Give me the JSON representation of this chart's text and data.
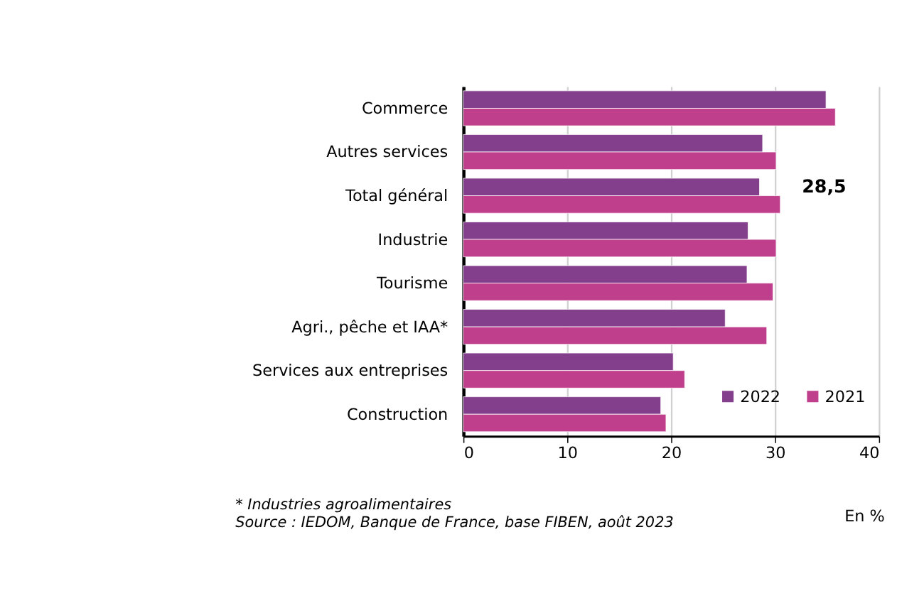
{
  "chart_data": {
    "type": "bar",
    "orientation": "horizontal",
    "categories": [
      "Commerce",
      "Autres services",
      "Total général",
      "Industrie",
      "Tourisme",
      "Agri., pêche et IAA*",
      "Services aux entreprises",
      "Construction"
    ],
    "series": [
      {
        "name": "2022",
        "color": "#843f8c",
        "values": [
          34.9,
          28.8,
          28.5,
          27.4,
          27.3,
          25.2,
          20.2,
          19.0
        ]
      },
      {
        "name": "2021",
        "color": "#c03f8c",
        "values": [
          35.8,
          30.1,
          30.5,
          30.1,
          29.8,
          29.2,
          21.3,
          19.5
        ]
      }
    ],
    "xlim": [
      0,
      40
    ],
    "xticks": [
      0,
      10,
      20,
      30,
      40
    ],
    "xlabel": "En %",
    "grid": "x",
    "legend": "bottom right",
    "annotations": [
      {
        "text": "28,5",
        "x": 28.5,
        "y": "Total général"
      },
      "* Industries agroalimentaires",
      "Source : IEDOM, Banque de France, base FIBEN, août 2023"
    ]
  }
}
